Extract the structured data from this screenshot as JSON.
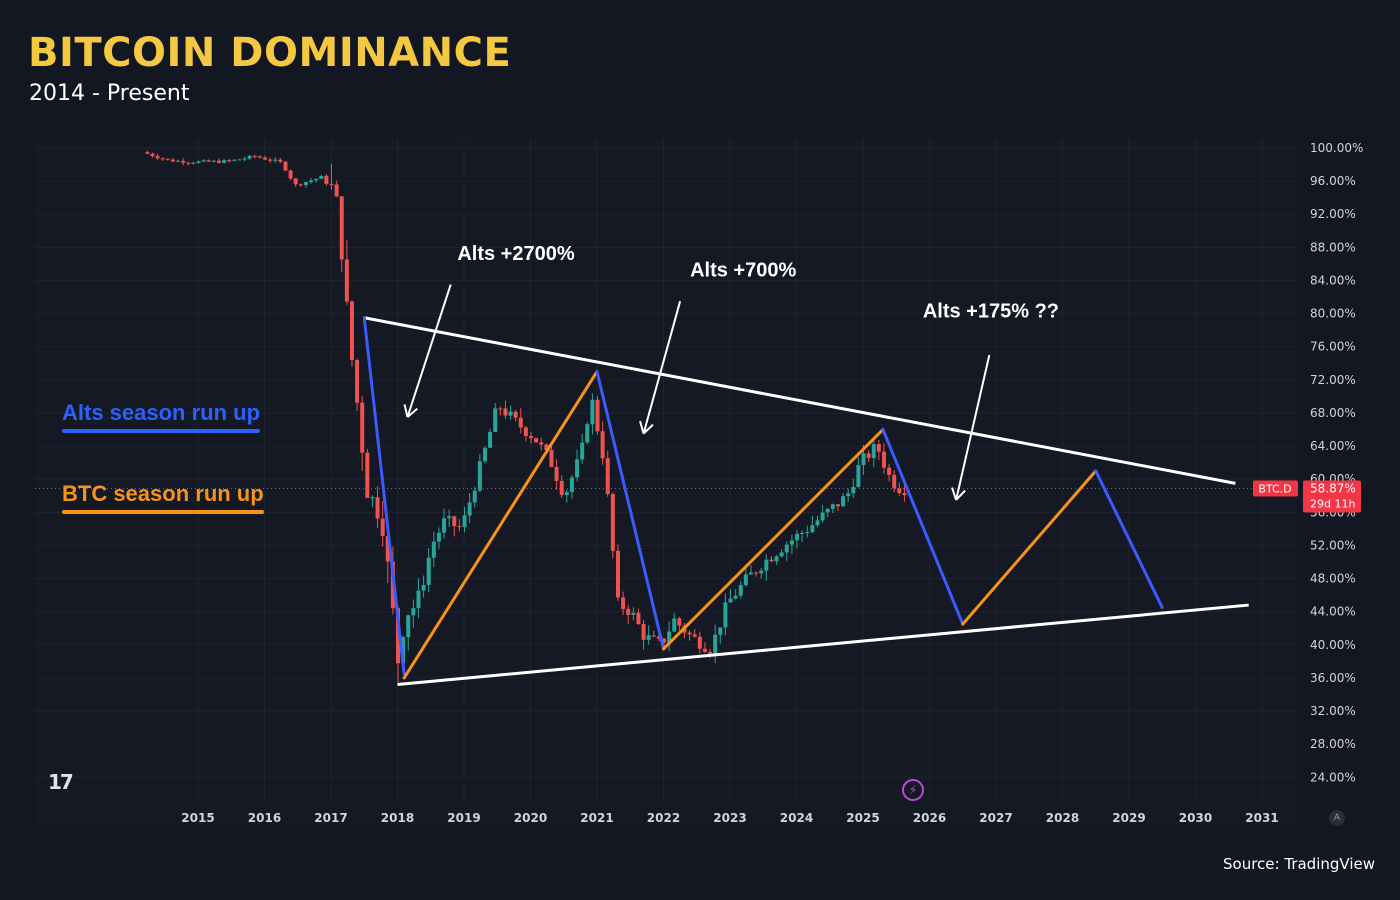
{
  "header": {
    "title": "BITCOIN DOMINANCE",
    "subtitle": "2014 - Present"
  },
  "footer": {
    "source": "Source: TradingView"
  },
  "legend": [
    {
      "label": "Alts season run up",
      "color": "#2962ff"
    },
    {
      "label": "BTC season run up",
      "color": "#f7931a"
    }
  ],
  "colors": {
    "up": "#26a69a",
    "down": "#ef5350",
    "line": "#ffffff",
    "alts": "#3d5afe",
    "btc": "#f7931a",
    "accent": "#f5c842",
    "tag": "#f23645"
  },
  "icons": {
    "logo": "tradingview-logo-icon",
    "replay": "lightning-bolt-icon",
    "auto": "auto-scale-icon"
  },
  "logo_text": "17",
  "auto_label": "A",
  "price_tag": {
    "symbol": "BTC.D",
    "value": "58.87%",
    "countdown": "29d 11h"
  },
  "chart_data": {
    "type": "candlestick",
    "x_ticks": [
      "2015",
      "2016",
      "2017",
      "2018",
      "2019",
      "2020",
      "2021",
      "2022",
      "2023",
      "2024",
      "2025",
      "2026",
      "2027",
      "2028",
      "2029",
      "2030",
      "2031"
    ],
    "y_ticks": [
      "100.00%",
      "96.00%",
      "92.00%",
      "88.00%",
      "84.00%",
      "80.00%",
      "76.00%",
      "72.00%",
      "68.00%",
      "64.00%",
      "60.00%",
      "56.00%",
      "52.00%",
      "48.00%",
      "44.00%",
      "40.00%",
      "36.00%",
      "32.00%",
      "28.00%",
      "24.00%"
    ],
    "ylim": [
      24,
      100
    ],
    "xlim": [
      2014.0,
      2032.0
    ],
    "current_value": 58.87,
    "price_path": [
      [
        2014.2,
        99.5
      ],
      [
        2014.6,
        98.5
      ],
      [
        2015.0,
        98.3
      ],
      [
        2015.5,
        98.4
      ],
      [
        2015.9,
        99.0
      ],
      [
        2016.3,
        98.2
      ],
      [
        2016.5,
        95.5
      ],
      [
        2016.9,
        96.5
      ],
      [
        2017.1,
        94.5
      ],
      [
        2017.2,
        88
      ],
      [
        2017.3,
        78
      ],
      [
        2017.45,
        68
      ],
      [
        2017.6,
        58
      ],
      [
        2017.8,
        56
      ],
      [
        2017.95,
        45
      ],
      [
        2018.05,
        38
      ],
      [
        2018.15,
        44
      ],
      [
        2018.35,
        45
      ],
      [
        2018.55,
        52
      ],
      [
        2018.75,
        55
      ],
      [
        2019.0,
        54
      ],
      [
        2019.3,
        62
      ],
      [
        2019.55,
        69
      ],
      [
        2019.8,
        67
      ],
      [
        2020.1,
        65
      ],
      [
        2020.35,
        62
      ],
      [
        2020.55,
        58
      ],
      [
        2020.8,
        63
      ],
      [
        2020.95,
        70
      ],
      [
        2021.15,
        62
      ],
      [
        2021.35,
        45
      ],
      [
        2021.55,
        44
      ],
      [
        2021.75,
        41
      ],
      [
        2022.0,
        40
      ],
      [
        2022.2,
        43
      ],
      [
        2022.45,
        41
      ],
      [
        2022.75,
        39.5
      ],
      [
        2023.0,
        45
      ],
      [
        2023.3,
        48
      ],
      [
        2023.55,
        50
      ],
      [
        2023.85,
        52
      ],
      [
        2024.2,
        54
      ],
      [
        2024.5,
        56
      ],
      [
        2024.8,
        58
      ],
      [
        2025.0,
        62
      ],
      [
        2025.25,
        64
      ],
      [
        2025.45,
        60
      ],
      [
        2025.6,
        58.87
      ]
    ],
    "trend_lines": [
      {
        "role": "upper",
        "from": [
          2017.5,
          79.5
        ],
        "to": [
          2030.6,
          59.5
        ]
      },
      {
        "role": "lower",
        "from": [
          2018.0,
          35.2
        ],
        "to": [
          2030.8,
          44.8
        ]
      }
    ],
    "season_lines": [
      {
        "series": "Alts season run up",
        "from": [
          2017.5,
          79.5
        ],
        "to": [
          2018.1,
          36.5
        ]
      },
      {
        "series": "BTC season run up",
        "from": [
          2018.1,
          36.0
        ],
        "to": [
          2021.0,
          73.0
        ]
      },
      {
        "series": "Alts season run up",
        "from": [
          2021.0,
          73.0
        ],
        "to": [
          2022.0,
          39.5
        ]
      },
      {
        "series": "BTC season run up",
        "from": [
          2022.0,
          39.5
        ],
        "to": [
          2025.3,
          66.0
        ]
      },
      {
        "series": "Alts season run up",
        "from": [
          2025.3,
          66.0
        ],
        "to": [
          2026.5,
          42.5
        ]
      },
      {
        "series": "BTC season run up",
        "from": [
          2026.5,
          42.5
        ],
        "to": [
          2028.5,
          61.0
        ]
      },
      {
        "series": "Alts season run up",
        "from": [
          2028.5,
          61.0
        ],
        "to": [
          2029.5,
          44.5
        ]
      }
    ],
    "annotations": [
      {
        "text": "Alts +2700%",
        "x": 2018.9,
        "y": 86.5,
        "arrow_from": [
          2018.8,
          83.5
        ],
        "arrow_to": [
          2018.15,
          67.5
        ]
      },
      {
        "text": "Alts +700%",
        "x": 2022.4,
        "y": 84.5,
        "arrow_from": [
          2022.25,
          81.5
        ],
        "arrow_to": [
          2021.7,
          65.5
        ]
      },
      {
        "text": "Alts +175% ??",
        "x": 2025.9,
        "y": 79.5,
        "arrow_from": [
          2026.9,
          75.0
        ],
        "arrow_to": [
          2026.4,
          57.5
        ]
      }
    ]
  }
}
